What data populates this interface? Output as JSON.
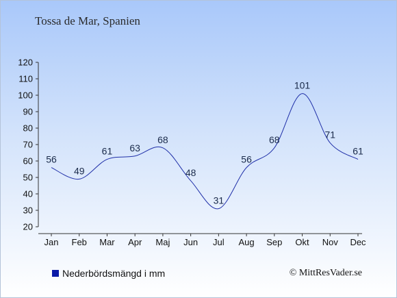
{
  "chart_data": {
    "type": "line",
    "title": "Tossa de Mar, Spanien",
    "categories": [
      "Jan",
      "Feb",
      "Mar",
      "Apr",
      "Maj",
      "Jun",
      "Jul",
      "Aug",
      "Sep",
      "Okt",
      "Nov",
      "Dec"
    ],
    "series": [
      {
        "name": "Nederbördsmängd i mm",
        "values": [
          56,
          49,
          61,
          63,
          68,
          48,
          31,
          56,
          68,
          101,
          71,
          61
        ],
        "color": "#1f2fa8"
      }
    ],
    "y_ticks": [
      20,
      30,
      40,
      50,
      60,
      70,
      80,
      90,
      100,
      110,
      120
    ],
    "ylim": [
      20,
      120
    ],
    "grid": false,
    "legend_position": "bottom-left"
  },
  "credit": "© MittResVader.se",
  "colors": {
    "line": "#1f2fa8",
    "legend_swatch": "#0b1aa8",
    "axis": "#333333"
  }
}
